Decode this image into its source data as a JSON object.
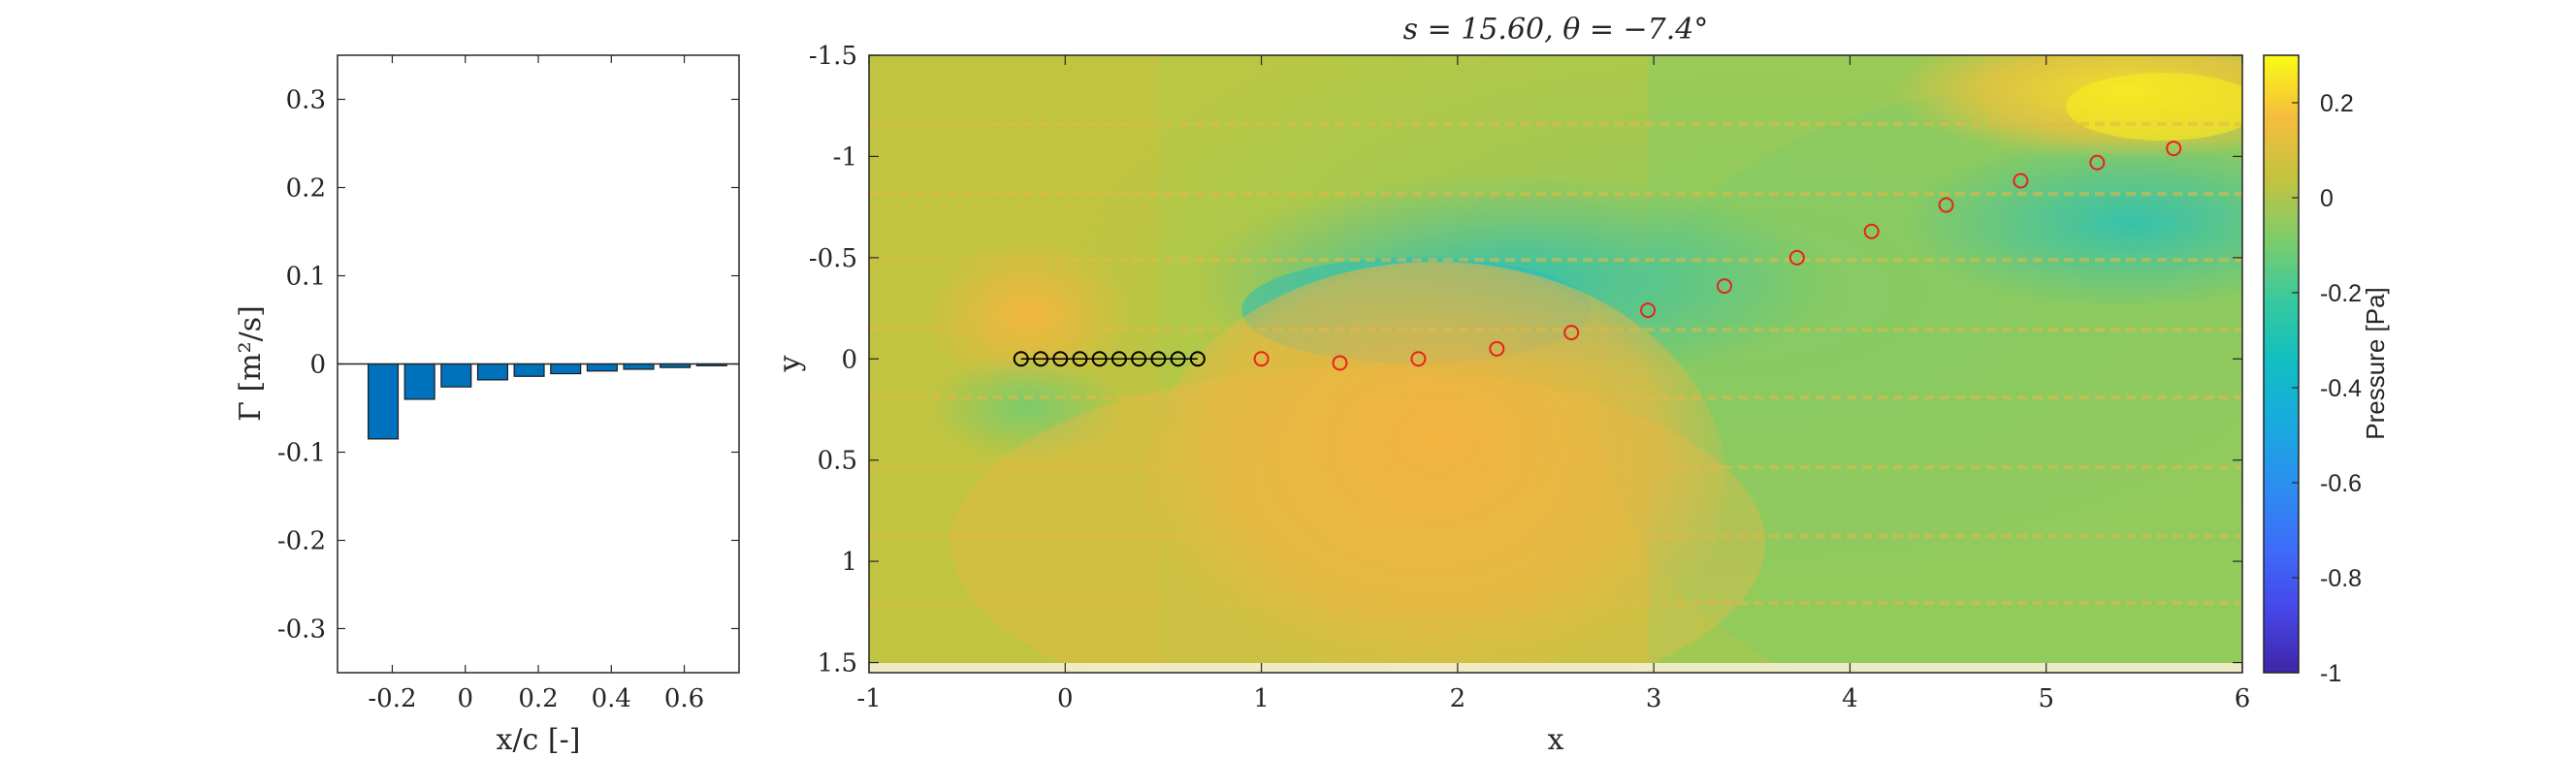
{
  "chart_data": [
    {
      "type": "bar",
      "xlabel": "x/c [-]",
      "ylabel": "Γ [m²/s]",
      "xlim": [
        -0.35,
        0.75
      ],
      "ylim": [
        -0.35,
        0.35
      ],
      "xticks": [
        "-0.2",
        "0",
        "0.2",
        "0.4",
        "0.6"
      ],
      "xtick_values": [
        -0.2,
        0,
        0.2,
        0.4,
        0.6
      ],
      "yticks": [
        "0.3",
        "0.2",
        "0.1",
        "0",
        "-0.1",
        "-0.2",
        "-0.3"
      ],
      "ytick_values": [
        0.3,
        0.2,
        0.1,
        0,
        -0.1,
        -0.2,
        -0.3
      ],
      "x": [
        -0.225,
        -0.125,
        -0.025,
        0.075,
        0.175,
        0.275,
        0.375,
        0.475,
        0.575,
        0.675
      ],
      "values": [
        -0.085,
        -0.04,
        -0.026,
        -0.018,
        -0.014,
        -0.011,
        -0.008,
        -0.006,
        -0.004,
        -0.002
      ],
      "bar_color": "#0072BD",
      "grid": false
    },
    {
      "type": "heatmap",
      "title": "s = 15.60, θ = −7.4°",
      "xlabel": "x",
      "ylabel": "y",
      "xlim": [
        -1,
        6
      ],
      "ylim": [
        -1.5,
        1.55
      ],
      "y_reversed": true,
      "xticks": [
        "-1",
        "0",
        "1",
        "2",
        "3",
        "4",
        "5",
        "6"
      ],
      "xtick_values": [
        -1,
        0,
        1,
        2,
        3,
        4,
        5,
        6
      ],
      "yticks": [
        "-1.5",
        "-1",
        "-0.5",
        "0",
        "0.5",
        "1",
        "1.5"
      ],
      "ytick_values": [
        -1.5,
        -1,
        -0.5,
        0,
        0.5,
        1,
        1.5
      ],
      "colorbar": {
        "label": "Pressure [Pa]",
        "range": [
          -1,
          0.3
        ],
        "ticks": [
          "0.2",
          "0",
          "-0.2",
          "-0.4",
          "-0.6",
          "-0.8",
          "-1"
        ],
        "tick_values": [
          0.2,
          0,
          -0.2,
          -0.4,
          -0.6,
          -0.8,
          -1
        ],
        "colormap": "parula"
      },
      "plate_points": {
        "color": "#000000",
        "x": [
          -0.225,
          -0.125,
          -0.025,
          0.075,
          0.175,
          0.275,
          0.375,
          0.475,
          0.575,
          0.675
        ],
        "y": [
          0,
          0,
          0,
          0,
          0,
          0,
          0,
          0,
          0,
          0
        ]
      },
      "wake_points": {
        "color": "#E8231A",
        "x": [
          1.0,
          1.4,
          1.8,
          2.2,
          2.58,
          2.97,
          3.36,
          3.73,
          4.11,
          4.49,
          4.87,
          5.26,
          5.65
        ],
        "y": [
          0.0,
          0.02,
          0.0,
          -0.05,
          -0.13,
          -0.24,
          -0.36,
          -0.5,
          -0.63,
          -0.76,
          -0.88,
          -0.97,
          -1.04
        ]
      }
    }
  ]
}
